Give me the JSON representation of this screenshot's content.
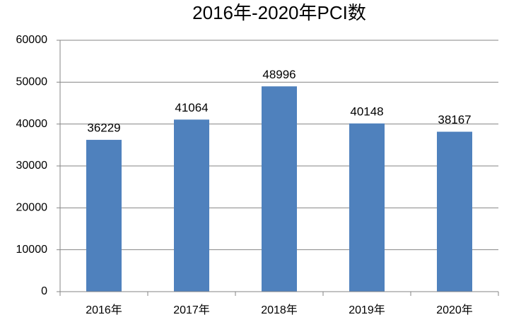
{
  "chart_data": {
    "type": "bar",
    "title": "2016年-2020年PCI数",
    "categories": [
      "2016年",
      "2017年",
      "2018年",
      "2019年",
      "2020年"
    ],
    "values": [
      36229,
      41064,
      48996,
      40148,
      38167
    ],
    "color": "#4f81bd",
    "ylim": [
      0,
      60000
    ],
    "yticks": [
      0,
      10000,
      20000,
      30000,
      40000,
      50000,
      60000
    ],
    "grid": true
  }
}
